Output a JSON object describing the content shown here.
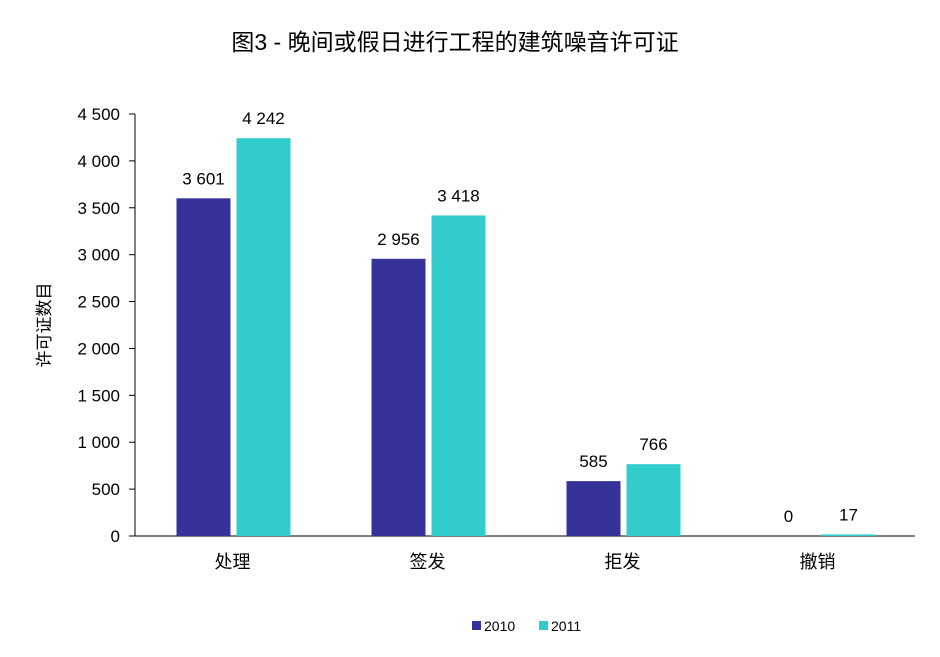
{
  "chart_data": {
    "type": "bar",
    "title": "图3 - 晚间或假日进行工程的建筑噪音许可证",
    "xlabel": "",
    "ylabel": "许可证数目",
    "categories": [
      "处理",
      "签发",
      "拒发",
      "撤销"
    ],
    "series": [
      {
        "name": "2010",
        "values": [
          3601,
          2956,
          585,
          0
        ],
        "labels": [
          "3 601",
          "2 956",
          "585",
          "0"
        ],
        "color": "#35329A"
      },
      {
        "name": "2011",
        "values": [
          4242,
          3418,
          766,
          17
        ],
        "labels": [
          "4 242",
          "3 418",
          "766",
          "17"
        ],
        "color": "#33CCCC"
      }
    ],
    "ylim": [
      0,
      4500
    ],
    "yticks": [
      0,
      500,
      1000,
      1500,
      2000,
      2500,
      3000,
      3500,
      4000,
      4500
    ],
    "ytick_labels": [
      "0",
      "500",
      "1 000",
      "1 500",
      "2 000",
      "2 500",
      "3 000",
      "3 500",
      "4 000",
      "4 500"
    ],
    "grid": false,
    "legend": "bottom"
  }
}
